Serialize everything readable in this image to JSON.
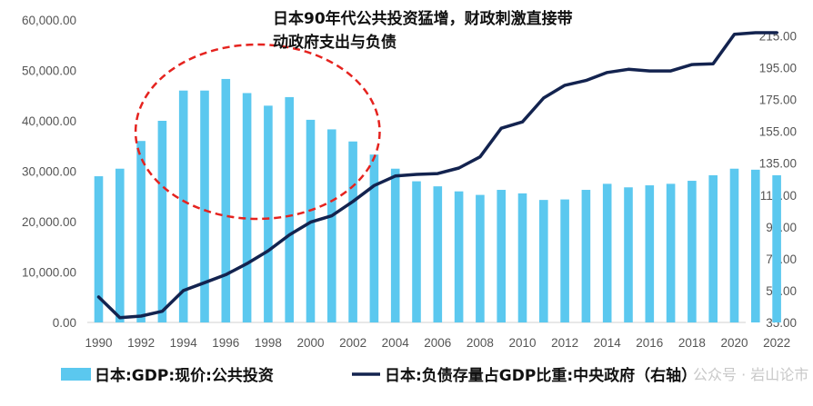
{
  "chart_data": {
    "type": "bar",
    "annotation_lines": [
      "日本90年代公共投资猛增，财政刺激直接带",
      "动政府支出与负债"
    ],
    "categories": [
      "1990",
      "1991",
      "1992",
      "1993",
      "1994",
      "1995",
      "1996",
      "1997",
      "1998",
      "1999",
      "2000",
      "2001",
      "2002",
      "2003",
      "2004",
      "2005",
      "2006",
      "2007",
      "2008",
      "2009",
      "2010",
      "2011",
      "2012",
      "2013",
      "2014",
      "2015",
      "2016",
      "2017",
      "2018",
      "2019",
      "2020",
      "2021",
      "2022"
    ],
    "x_tick_labels": [
      "1990",
      "1992",
      "1994",
      "1996",
      "1998",
      "2000",
      "2002",
      "2004",
      "2006",
      "2008",
      "2010",
      "2012",
      "2014",
      "2016",
      "2018",
      "2020",
      "2022"
    ],
    "series": [
      {
        "name": "日本:GDP:现价:公共投资",
        "kind": "bar",
        "axis": "left",
        "color": "#5bc8ef",
        "values": [
          29000,
          30500,
          36000,
          40000,
          46000,
          46000,
          48300,
          45500,
          43000,
          44700,
          40200,
          38300,
          35900,
          33300,
          30500,
          28000,
          27000,
          26000,
          25300,
          26300,
          25600,
          24300,
          24400,
          26300,
          27500,
          26800,
          27200,
          27500,
          28100,
          29200,
          30500,
          30300,
          29200
        ]
      },
      {
        "name": "日本:负债存量占GDP比重:中央政府（右轴）",
        "kind": "line",
        "axis": "right",
        "color": "#13234f",
        "values": [
          51,
          38,
          39,
          42,
          55,
          60,
          65,
          72,
          80,
          90,
          98,
          102,
          111,
          121,
          127,
          128,
          128.5,
          132,
          139,
          157,
          161,
          176,
          184,
          187,
          192,
          194,
          193,
          193,
          197,
          197.5,
          216,
          217,
          217
        ]
      }
    ],
    "left_axis": {
      "range": [
        0,
        60000
      ],
      "ticks": [
        "0.00",
        "10,000.00",
        "20,000.00",
        "30,000.00",
        "40,000.00",
        "50,000.00",
        "60,000.00"
      ]
    },
    "right_axis": {
      "range": [
        35,
        225
      ],
      "ticks": [
        "35.00",
        "55.00",
        "75.00",
        "95.00",
        "115.00",
        "135.00",
        "155.00",
        "175.00",
        "195.00",
        "215.00"
      ]
    },
    "highlight_ellipse": {
      "from_year": "1992",
      "to_year": "2003",
      "color": "#e5231f",
      "style": "dashed"
    },
    "legend_placement": "bottom",
    "grid": false
  },
  "watermark": "公众号 · 岩山论市"
}
